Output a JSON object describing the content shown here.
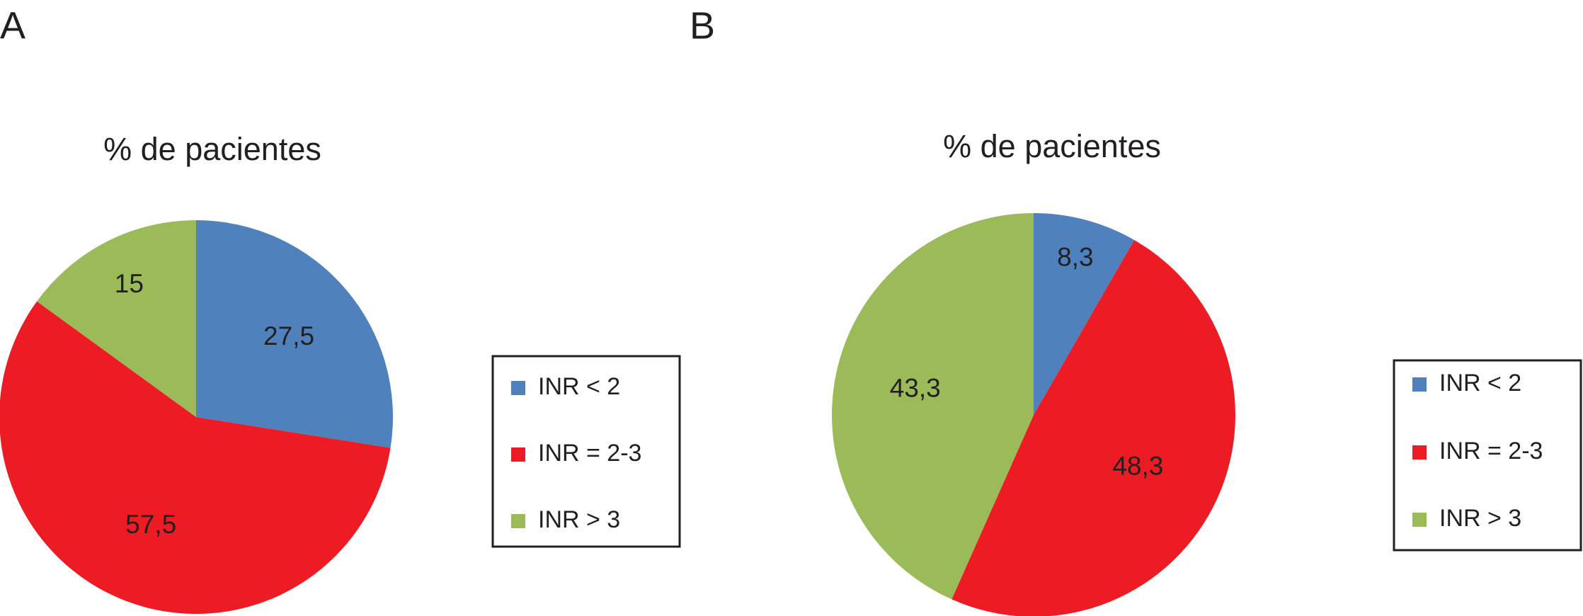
{
  "chart_data": [
    {
      "type": "pie",
      "label": "A",
      "title": "% de pacientes",
      "categories": [
        "INR < 2",
        "INR = 2-3",
        "INR > 3"
      ],
      "values": [
        27.5,
        57.5,
        15
      ],
      "value_labels": [
        "27,5",
        "57,5",
        "15"
      ],
      "colors": [
        "#4f81bd",
        "#ed1c24",
        "#9bbb59"
      ]
    },
    {
      "type": "pie",
      "label": "B",
      "title": "% de pacientes",
      "categories": [
        "INR < 2",
        "INR = 2-3",
        "INR > 3"
      ],
      "values": [
        8.3,
        48.3,
        43.3
      ],
      "value_labels": [
        "8,3",
        "48,3",
        "43,3"
      ],
      "colors": [
        "#4f81bd",
        "#ed1c24",
        "#9bbb59"
      ]
    }
  ]
}
